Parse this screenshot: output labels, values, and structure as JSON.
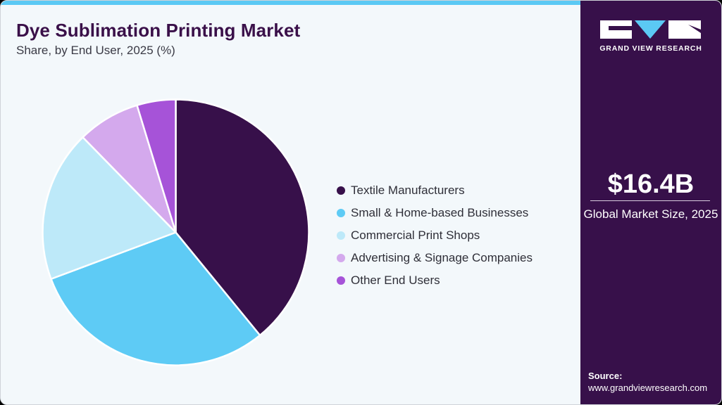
{
  "header": {
    "title": "Dye Sublimation Printing Market",
    "subtitle": "Share, by End User, 2025 (%)"
  },
  "brand": {
    "name": "GRAND VIEW RESEARCH",
    "logo_icon": "gvr-logo-icon"
  },
  "summary": {
    "value": "$16.4B",
    "label": "Global Market Size, 2025"
  },
  "source": {
    "title": "Source:",
    "url": "www.grandviewresearch.com"
  },
  "colors": {
    "accent_bar": "#5bc9f4",
    "sidebar": "#37104a",
    "title": "#3a1049"
  },
  "chart_data": {
    "type": "pie",
    "title": "Dye Sublimation Printing Market",
    "subtitle": "Share, by End User, 2025 (%)",
    "categories": [
      "Textile Manufacturers",
      "Small & Home-based Businesses",
      "Commercial Print Shops",
      "Advertising & Signage Companies",
      "Other End Users"
    ],
    "values": [
      39.1,
      30.2,
      18.4,
      7.6,
      4.7
    ],
    "colors": [
      "#37104a",
      "#5ecbf5",
      "#bde9f9",
      "#d4a9ed",
      "#a653d8"
    ],
    "start_angle": "12 o'clock, clockwise",
    "legend_position": "right"
  },
  "legend": {
    "items": [
      {
        "label": "Textile Manufacturers",
        "color": "#37104a"
      },
      {
        "label": "Small & Home-based Businesses",
        "color": "#5ecbf5"
      },
      {
        "label": "Commercial Print Shops",
        "color": "#bde9f9"
      },
      {
        "label": "Advertising & Signage Companies",
        "color": "#d4a9ed"
      },
      {
        "label": "Other End Users",
        "color": "#a653d8"
      }
    ]
  }
}
